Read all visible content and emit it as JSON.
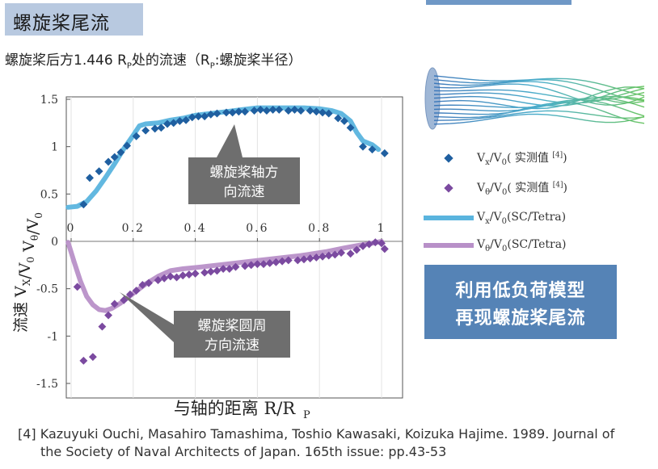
{
  "header": {
    "title": "螺旋桨尾流",
    "subtitle": "螺旋桨后方1.446 R",
    "subtitle_sub": "P",
    "subtitle_rest": "处的流速（R",
    "subtitle_sub2": "P",
    "subtitle_end": ":螺旋桨半径）"
  },
  "colors": {
    "title_bg": "#b8c9e0",
    "axial_marker": "#1f5fa0",
    "circ_marker": "#7b4aa0",
    "axial_line": "#5ab4de",
    "circ_line": "#b890c8",
    "callout_bg": "#6e6e6e",
    "highlight_box": "#5583b6"
  },
  "chart_data": {
    "type": "scatter",
    "xlabel": "与轴的距离 R/R",
    "xlabel_sub": "P",
    "ylabel": "流速   V",
    "ylabel_sub": "X",
    "ylabel_rest": "/V",
    "ylabel_sub2": "0",
    "ylabel_theta": "  V",
    "ylabel_sub3": "θ",
    "ylabel_rest2": "/V",
    "ylabel_sub4": "0",
    "xlim": [
      0,
      1
    ],
    "ylim": [
      -1.5,
      1.5
    ],
    "x_ticks": [
      0,
      0.2,
      0.4,
      0.6,
      0.8,
      1
    ],
    "x_tick_labels": [
      "0",
      "0.2",
      "0.4",
      "0.6",
      "0.8",
      "1"
    ],
    "y_ticks": [
      1.5,
      1,
      0.5,
      0,
      -0.5,
      -1,
      -1.5
    ],
    "y_tick_labels": [
      "1.5",
      "1",
      "0.5",
      "0",
      "-0.5",
      "-1",
      "-1.5"
    ],
    "grid": "vertical",
    "series": [
      {
        "name": "Vx/V0（实测值[4]）",
        "kind": "marker",
        "points": [
          [
            0.04,
            0.39
          ],
          [
            0.06,
            0.67
          ],
          [
            0.09,
            0.74
          ],
          [
            0.12,
            0.84
          ],
          [
            0.14,
            0.89
          ],
          [
            0.16,
            0.94
          ],
          [
            0.18,
            1.01
          ],
          [
            0.21,
            1.11
          ],
          [
            0.24,
            1.17
          ],
          [
            0.27,
            1.19
          ],
          [
            0.29,
            1.2
          ],
          [
            0.31,
            1.24
          ],
          [
            0.33,
            1.25
          ],
          [
            0.35,
            1.27
          ],
          [
            0.37,
            1.28
          ],
          [
            0.39,
            1.31
          ],
          [
            0.41,
            1.32
          ],
          [
            0.43,
            1.32
          ],
          [
            0.45,
            1.34
          ],
          [
            0.47,
            1.35
          ],
          [
            0.5,
            1.36
          ],
          [
            0.52,
            1.36
          ],
          [
            0.54,
            1.37
          ],
          [
            0.56,
            1.37
          ],
          [
            0.59,
            1.38
          ],
          [
            0.61,
            1.39
          ],
          [
            0.63,
            1.38
          ],
          [
            0.65,
            1.39
          ],
          [
            0.67,
            1.39
          ],
          [
            0.7,
            1.38
          ],
          [
            0.72,
            1.39
          ],
          [
            0.74,
            1.38
          ],
          [
            0.77,
            1.38
          ],
          [
            0.79,
            1.37
          ],
          [
            0.81,
            1.36
          ],
          [
            0.83,
            1.35
          ],
          [
            0.86,
            1.3
          ],
          [
            0.88,
            1.27
          ],
          [
            0.9,
            1.2
          ],
          [
            0.94,
            1.0
          ],
          [
            0.97,
            0.97
          ],
          [
            1.01,
            0.93
          ]
        ]
      },
      {
        "name": "Vθ/V0（实测值[4]）",
        "kind": "marker",
        "points": [
          [
            0.02,
            -0.48
          ],
          [
            0.04,
            -1.26
          ],
          [
            0.07,
            -1.22
          ],
          [
            0.1,
            -0.9
          ],
          [
            0.12,
            -0.78
          ],
          [
            0.14,
            -0.66
          ],
          [
            0.17,
            -0.62
          ],
          [
            0.19,
            -0.56
          ],
          [
            0.21,
            -0.52
          ],
          [
            0.23,
            -0.46
          ],
          [
            0.25,
            -0.44
          ],
          [
            0.28,
            -0.41
          ],
          [
            0.3,
            -0.39
          ],
          [
            0.32,
            -0.37
          ],
          [
            0.34,
            -0.38
          ],
          [
            0.36,
            -0.36
          ],
          [
            0.38,
            -0.35
          ],
          [
            0.4,
            -0.34
          ],
          [
            0.43,
            -0.33
          ],
          [
            0.45,
            -0.32
          ],
          [
            0.47,
            -0.31
          ],
          [
            0.49,
            -0.29
          ],
          [
            0.51,
            -0.29
          ],
          [
            0.53,
            -0.27
          ],
          [
            0.56,
            -0.26
          ],
          [
            0.58,
            -0.25
          ],
          [
            0.6,
            -0.24
          ],
          [
            0.62,
            -0.24
          ],
          [
            0.64,
            -0.23
          ],
          [
            0.66,
            -0.22
          ],
          [
            0.68,
            -0.21
          ],
          [
            0.7,
            -0.2
          ],
          [
            0.73,
            -0.2
          ],
          [
            0.75,
            -0.19
          ],
          [
            0.77,
            -0.18
          ],
          [
            0.79,
            -0.17
          ],
          [
            0.81,
            -0.16
          ],
          [
            0.83,
            -0.15
          ],
          [
            0.85,
            -0.14
          ],
          [
            0.87,
            -0.12
          ],
          [
            0.9,
            -0.13
          ],
          [
            0.92,
            -0.09
          ],
          [
            0.94,
            -0.05
          ],
          [
            0.96,
            -0.03
          ],
          [
            0.98,
            -0.01
          ],
          [
            1.0,
            -0.02
          ],
          [
            1.01,
            -0.08
          ]
        ]
      },
      {
        "name": "Vx/V0(SC/Tetra)",
        "kind": "line",
        "points": [
          [
            -0.01,
            0.36
          ],
          [
            0.02,
            0.37
          ],
          [
            0.05,
            0.42
          ],
          [
            0.08,
            0.53
          ],
          [
            0.11,
            0.67
          ],
          [
            0.14,
            0.82
          ],
          [
            0.17,
            0.98
          ],
          [
            0.2,
            1.12
          ],
          [
            0.22,
            1.22
          ],
          [
            0.24,
            1.24
          ],
          [
            0.28,
            1.25
          ],
          [
            0.32,
            1.28
          ],
          [
            0.36,
            1.3
          ],
          [
            0.4,
            1.33
          ],
          [
            0.45,
            1.35
          ],
          [
            0.5,
            1.37
          ],
          [
            0.55,
            1.39
          ],
          [
            0.6,
            1.41
          ],
          [
            0.65,
            1.41
          ],
          [
            0.7,
            1.41
          ],
          [
            0.75,
            1.41
          ],
          [
            0.8,
            1.4
          ],
          [
            0.84,
            1.38
          ],
          [
            0.87,
            1.35
          ],
          [
            0.9,
            1.27
          ],
          [
            0.92,
            1.15
          ],
          [
            0.94,
            1.06
          ],
          [
            0.97,
            1.02
          ],
          [
            0.99,
            0.97
          ]
        ]
      },
      {
        "name": "Vθ/V0(SC/Tetra)",
        "kind": "line",
        "points": [
          [
            -0.01,
            -0.01
          ],
          [
            0.01,
            -0.22
          ],
          [
            0.03,
            -0.42
          ],
          [
            0.05,
            -0.58
          ],
          [
            0.07,
            -0.67
          ],
          [
            0.09,
            -0.72
          ],
          [
            0.11,
            -0.73
          ],
          [
            0.13,
            -0.71
          ],
          [
            0.16,
            -0.65
          ],
          [
            0.2,
            -0.55
          ],
          [
            0.24,
            -0.45
          ],
          [
            0.28,
            -0.37
          ],
          [
            0.32,
            -0.31
          ],
          [
            0.36,
            -0.29
          ],
          [
            0.42,
            -0.27
          ],
          [
            0.5,
            -0.24
          ],
          [
            0.58,
            -0.21
          ],
          [
            0.66,
            -0.18
          ],
          [
            0.74,
            -0.15
          ],
          [
            0.82,
            -0.11
          ],
          [
            0.88,
            -0.07
          ],
          [
            0.93,
            -0.04
          ],
          [
            0.97,
            -0.02
          ],
          [
            1.0,
            0.0
          ]
        ]
      }
    ],
    "annotations": [
      {
        "text_line1": "螺旋桨轴方",
        "text_line2": "向流速"
      },
      {
        "text_line1": "螺旋桨圆周",
        "text_line2": "方向流速"
      }
    ]
  },
  "legend": {
    "items": [
      {
        "label": "V",
        "sub": "x",
        "rest": "/V",
        "sub2": "0",
        "tail": "( 实测值 ",
        "sup": "[4]",
        "end": ")"
      },
      {
        "label": "V",
        "sub": "θ",
        "rest": "/V",
        "sub2": "0",
        "tail": "( 实测值 ",
        "sup": "[4]",
        "end": ")"
      },
      {
        "label": "V",
        "sub": "x",
        "rest": "/V",
        "sub2": "0",
        "tail": "(SC/Tetra)",
        "sup": "",
        "end": ""
      },
      {
        "label": "V",
        "sub": "θ",
        "rest": "/V",
        "sub2": "0",
        "tail": "(SC/Tetra)",
        "sup": "",
        "end": ""
      }
    ]
  },
  "highlight": {
    "line1": "利用低负荷模型",
    "line2": "再现螺旋桨尾流"
  },
  "reference": {
    "line1": "[4] Kazuyuki Ouchi, Masahiro Tamashima, Toshio Kawasaki, Koizuka Hajime. 1989. Journal of",
    "line2": "the Society of Naval Architects of Japan. 165th issue: pp.43-53"
  }
}
